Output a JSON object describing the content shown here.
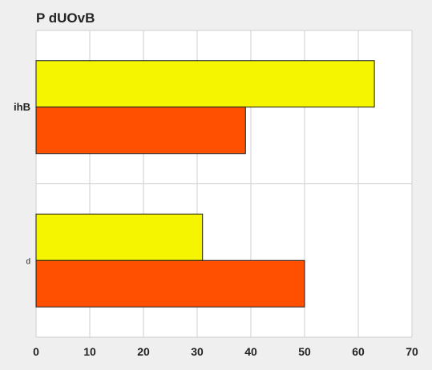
{
  "chart_data": {
    "type": "bar",
    "orientation": "horizontal",
    "title": "P dUOvB",
    "xlabel": "",
    "ylabel": "",
    "categories": [
      "ihB",
      "d"
    ],
    "series": [
      {
        "color": "#f5f500",
        "values": [
          63,
          31
        ]
      },
      {
        "color": "#ff4f00",
        "values": [
          39,
          50
        ]
      }
    ],
    "xlim": [
      0,
      70
    ],
    "xticks": [
      0,
      10,
      20,
      30,
      40,
      50,
      60,
      70
    ],
    "grid": true,
    "legend": "none"
  }
}
